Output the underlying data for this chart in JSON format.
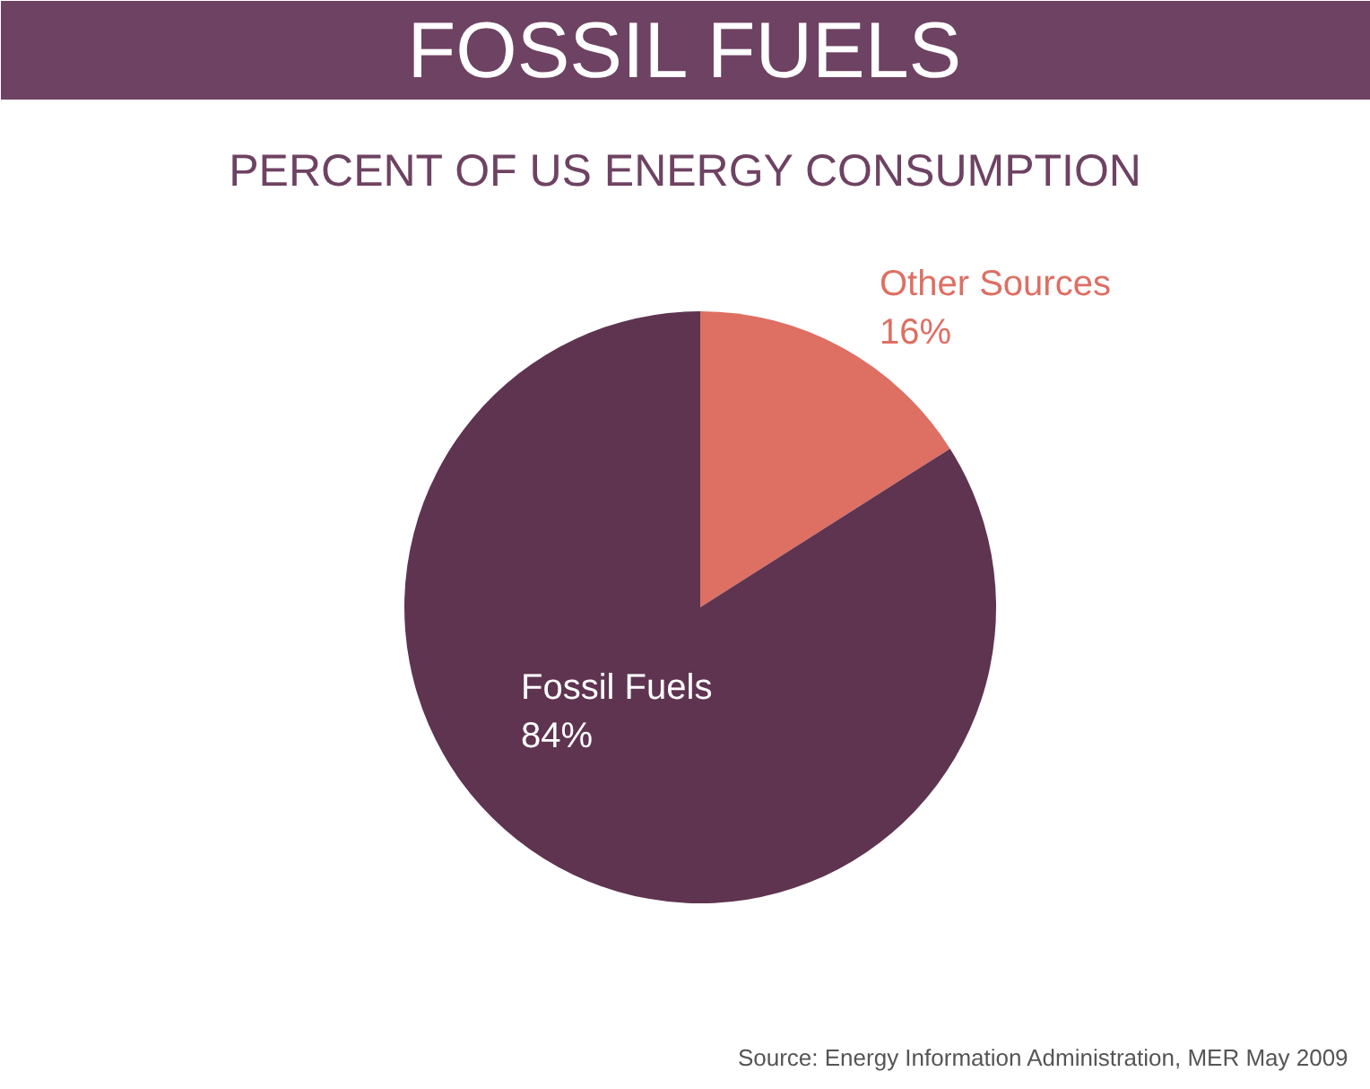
{
  "chart_data": {
    "type": "pie",
    "title": "FOSSIL FUELS",
    "subtitle": "PERCENT OF US ENERGY CONSUMPTION",
    "categories": [
      "Other Sources",
      "Fossil Fuels"
    ],
    "values": [
      16,
      84
    ],
    "value_labels": [
      "16%",
      "84%"
    ],
    "colors": [
      "#de6f63",
      "#5f3450"
    ],
    "annotations": [
      "Source: Energy Information Administration, MER May 2009"
    ]
  }
}
